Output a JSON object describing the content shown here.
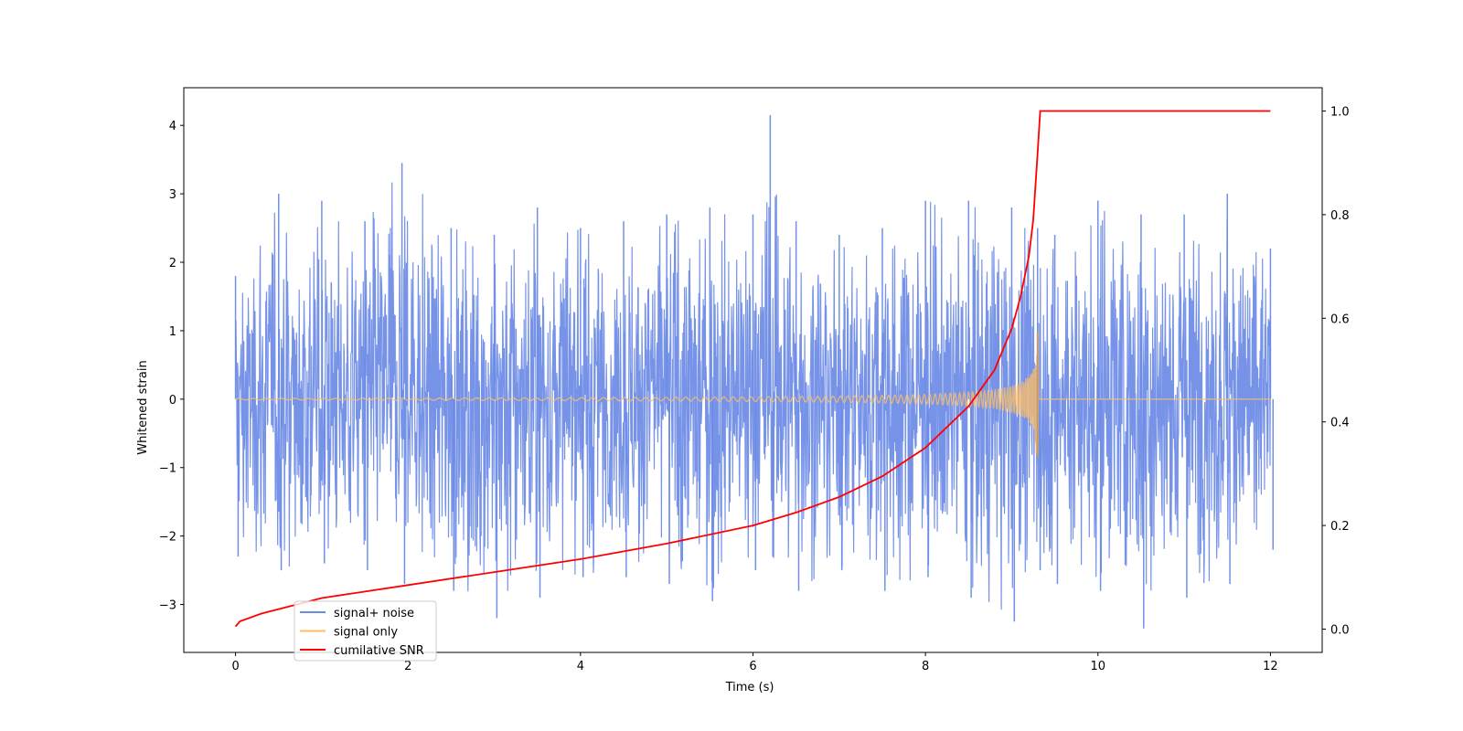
{
  "chart_data": {
    "type": "line",
    "title": "",
    "xlabel": "Time (s)",
    "ylabel": "Whitened strain",
    "y2label": "",
    "xlim": [
      -0.6,
      12.6
    ],
    "ylim": [
      -3.7,
      4.55
    ],
    "y2lim": [
      -0.045,
      1.045
    ],
    "xticks": [
      0,
      2,
      4,
      6,
      8,
      10,
      12
    ],
    "yticks": [
      -3,
      -2,
      -1,
      0,
      1,
      2,
      3,
      4
    ],
    "y2ticks": [
      "0.0",
      "0.2",
      "0.4",
      "0.6",
      "0.8",
      "1.0"
    ],
    "legend_position": "lower-left",
    "series": [
      {
        "name": "signal+ noise",
        "color": "#6a8ae6",
        "axis": "left",
        "description_samples": {
          "x": [
            0,
            0.5,
            1.0,
            1.5,
            1.93,
            2.5,
            3.0,
            3.5,
            4.0,
            4.5,
            5.0,
            5.5,
            6.0,
            6.2,
            6.5,
            7.0,
            7.5,
            8.0,
            8.5,
            9.0,
            9.3,
            9.5,
            10.0,
            10.5,
            11.0,
            11.5,
            12.0
          ],
          "y_max": [
            1.8,
            3.0,
            2.9,
            2.6,
            3.45,
            2.5,
            2.4,
            2.8,
            2.5,
            2.6,
            2.7,
            2.8,
            2.7,
            4.15,
            2.6,
            2.4,
            2.5,
            2.9,
            2.9,
            2.8,
            2.5,
            2.4,
            2.9,
            2.7,
            2.7,
            3.0,
            2.2
          ],
          "y_min": [
            -2.3,
            -2.5,
            -2.4,
            -2.5,
            -2.7,
            -2.8,
            -3.2,
            -2.9,
            -2.6,
            -2.6,
            -2.7,
            -2.95,
            -2.5,
            -2.3,
            -2.8,
            -2.5,
            -2.8,
            -2.6,
            -2.9,
            -3.25,
            -2.5,
            -2.7,
            -2.8,
            -3.35,
            -2.9,
            -2.7,
            -2.2
          ]
        }
      },
      {
        "name": "signal only",
        "color": "#ffbf66",
        "axis": "left",
        "x": [
          0,
          1,
          2,
          3,
          4,
          5,
          6,
          7,
          7.5,
          8,
          8.5,
          8.8,
          9.0,
          9.1,
          9.2,
          9.25,
          9.3,
          9.32,
          12
        ],
        "envelope": [
          0.01,
          0.012,
          0.015,
          0.018,
          0.022,
          0.027,
          0.034,
          0.045,
          0.055,
          0.07,
          0.1,
          0.14,
          0.2,
          0.25,
          0.33,
          0.42,
          0.98,
          0.0,
          0.0
        ]
      },
      {
        "name": "cumilative SNR",
        "color": "#ff0000",
        "axis": "right",
        "x": [
          0,
          0.05,
          0.3,
          1,
          2,
          3,
          4,
          5,
          6,
          6.5,
          7,
          7.5,
          8,
          8.5,
          8.8,
          9.0,
          9.1,
          9.2,
          9.25,
          9.3,
          9.33,
          12
        ],
        "y": [
          0.005,
          0.015,
          0.03,
          0.06,
          0.085,
          0.11,
          0.135,
          0.165,
          0.2,
          0.225,
          0.255,
          0.295,
          0.35,
          0.43,
          0.5,
          0.58,
          0.64,
          0.72,
          0.79,
          0.92,
          1.0,
          1.0
        ]
      }
    ]
  }
}
